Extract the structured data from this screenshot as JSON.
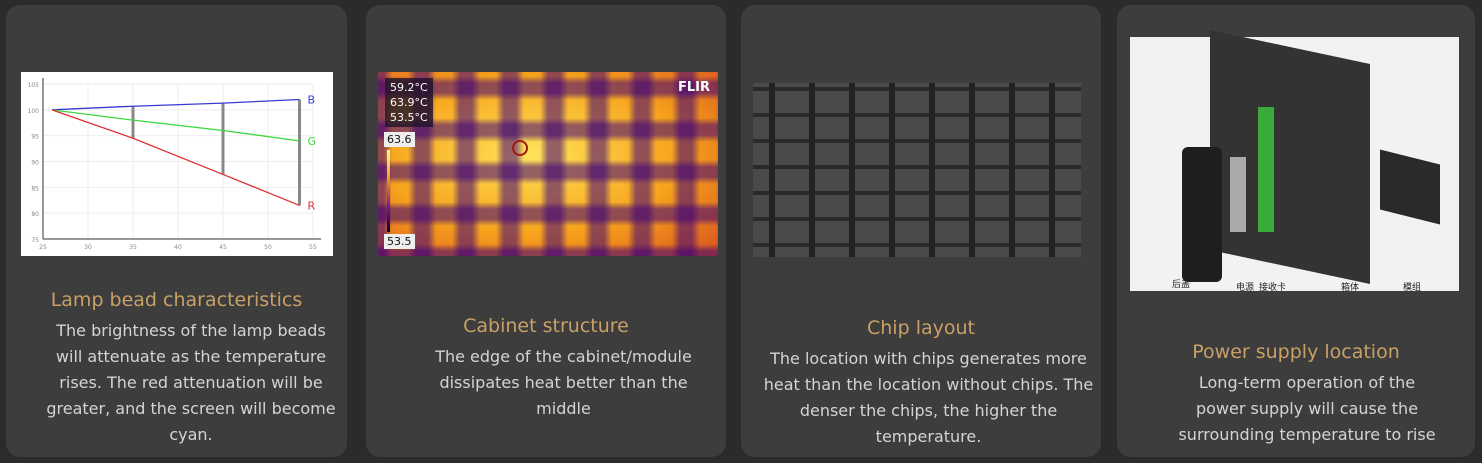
{
  "cards": [
    {
      "title": "Lamp bead characteristics",
      "desc": "The brightness of the lamp beads will attenuate as the temperature rises. The red attenuation will be greater, and the screen will become cyan."
    },
    {
      "title": "Cabinet structure",
      "desc": "The edge of the cabinet/module dissipates heat better than the middle"
    },
    {
      "title": "Chip layout",
      "desc": "The location with chips generates more heat than the location without chips. The denser the chips, the higher the temperature."
    },
    {
      "title": "Power supply location",
      "desc": "Long-term operation of the power supply will cause the surrounding temperature to rise"
    }
  ],
  "chart_data": {
    "type": "line",
    "xlim": [
      25,
      55
    ],
    "ylim": [
      75,
      105
    ],
    "xticks": [
      "25",
      "30",
      "35",
      "40",
      "45",
      "50",
      "55"
    ],
    "yticks": [
      "75",
      "80",
      "85",
      "90",
      "95",
      "100",
      "105"
    ],
    "x": [
      26,
      35,
      45,
      53.5
    ],
    "series": [
      {
        "name": "B",
        "color": "#3a3ad8",
        "values": [
          100,
          100.7,
          101.3,
          102
        ]
      },
      {
        "name": "G",
        "color": "#3fd83f",
        "values": [
          100,
          98,
          96,
          94
        ]
      },
      {
        "name": "R",
        "color": "#e03030",
        "values": [
          100,
          94.5,
          87.5,
          81.5
        ]
      }
    ],
    "grid": true
  },
  "thermal": {
    "readings": [
      "59.2°C",
      "63.9°C",
      "53.5°C"
    ],
    "max": "63.6",
    "min": "53.5",
    "brand": "FLIR"
  },
  "diagram": {
    "labels": [
      "后盖",
      "电源",
      "接收卡",
      "箱体",
      "模组"
    ]
  }
}
